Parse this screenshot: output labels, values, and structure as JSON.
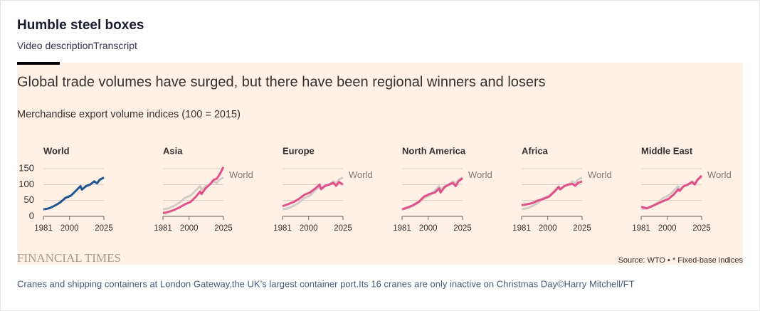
{
  "header": {
    "title": "Humble steel boxes",
    "tabs": [
      "Video description",
      "Transcript"
    ]
  },
  "figure": {
    "title": "Global trade volumes have surged, but there have been regional winners and losers",
    "subtitle": "Merchandise export volume indices (100 = 2015)",
    "logo": "FINANCIAL TIMES",
    "source": "Source: WTO • * Fixed-base indices"
  },
  "caption": "Cranes and shipping containers at London Gateway,the UK’s largest container port.Its 16 cranes are only inactive on Christmas Day©Harry Mitchell/FT",
  "chart_data": [
    {
      "type": "line",
      "title": "World",
      "show_ytick_labels": true,
      "x": [
        1981,
        1985,
        1989,
        1993,
        1997,
        2001,
        2005,
        2008,
        2009,
        2012,
        2015,
        2018,
        2020,
        2022,
        2025
      ],
      "xlim": [
        1981,
        2025
      ],
      "xticks": [
        1981,
        2000,
        2025
      ],
      "ylim": [
        0,
        160
      ],
      "yticks": [
        0,
        50,
        100,
        150
      ],
      "series": [
        {
          "color": "#1f5590",
          "values": [
            22,
            25,
            33,
            43,
            58,
            65,
            82,
            95,
            84,
            95,
            100,
            110,
            104,
            115,
            122
          ]
        }
      ]
    },
    {
      "type": "line",
      "title": "Asia",
      "show_ytick_labels": false,
      "x": [
        1981,
        1985,
        1989,
        1993,
        1997,
        2001,
        2005,
        2008,
        2009,
        2012,
        2015,
        2018,
        2020,
        2022,
        2025
      ],
      "xlim": [
        1981,
        2025
      ],
      "xticks": [
        1981,
        2000,
        2025
      ],
      "ylim": [
        0,
        160
      ],
      "yticks": [
        0,
        50,
        100,
        150
      ],
      "series": [
        {
          "name": "World",
          "color": "#d4ccc6",
          "values": [
            22,
            25,
            33,
            43,
            58,
            65,
            82,
            95,
            84,
            95,
            100,
            110,
            104,
            115,
            122
          ]
        },
        {
          "color": "#e0508a",
          "values": [
            10,
            14,
            20,
            28,
            38,
            45,
            62,
            78,
            70,
            88,
            100,
            115,
            118,
            130,
            155
          ]
        }
      ]
    },
    {
      "type": "line",
      "title": "Europe",
      "show_ytick_labels": false,
      "x": [
        1981,
        1985,
        1989,
        1993,
        1997,
        2001,
        2005,
        2008,
        2009,
        2012,
        2015,
        2018,
        2020,
        2022,
        2025
      ],
      "xlim": [
        1981,
        2025
      ],
      "xticks": [
        1981,
        2000,
        2025
      ],
      "ylim": [
        0,
        160
      ],
      "yticks": [
        0,
        50,
        100,
        150
      ],
      "series": [
        {
          "name": "World",
          "color": "#d4ccc6",
          "values": [
            22,
            25,
            33,
            43,
            58,
            65,
            82,
            95,
            84,
            95,
            100,
            110,
            104,
            115,
            122
          ]
        },
        {
          "color": "#e0508a",
          "values": [
            32,
            38,
            45,
            55,
            68,
            75,
            88,
            100,
            86,
            96,
            100,
            105,
            96,
            108,
            100
          ]
        }
      ]
    },
    {
      "type": "line",
      "title": "North America",
      "show_ytick_labels": false,
      "x": [
        1981,
        1985,
        1989,
        1993,
        1997,
        2001,
        2005,
        2008,
        2009,
        2012,
        2015,
        2018,
        2020,
        2022,
        2025
      ],
      "xlim": [
        1981,
        2025
      ],
      "xticks": [
        1981,
        2000,
        2025
      ],
      "ylim": [
        0,
        160
      ],
      "yticks": [
        0,
        50,
        100,
        150
      ],
      "series": [
        {
          "name": "World",
          "color": "#d4ccc6",
          "values": [
            22,
            25,
            33,
            43,
            58,
            65,
            82,
            95,
            84,
            95,
            100,
            110,
            104,
            115,
            122
          ]
        },
        {
          "color": "#e0508a",
          "values": [
            22,
            28,
            35,
            45,
            62,
            70,
            75,
            88,
            75,
            92,
            100,
            105,
            95,
            110,
            120
          ]
        }
      ]
    },
    {
      "type": "line",
      "title": "Africa",
      "show_ytick_labels": false,
      "x": [
        1981,
        1985,
        1989,
        1993,
        1997,
        2001,
        2005,
        2008,
        2009,
        2012,
        2015,
        2018,
        2020,
        2022,
        2025
      ],
      "xlim": [
        1981,
        2025
      ],
      "xticks": [
        1981,
        2000,
        2025
      ],
      "ylim": [
        0,
        160
      ],
      "yticks": [
        0,
        50,
        100,
        150
      ],
      "series": [
        {
          "name": "World",
          "color": "#d4ccc6",
          "values": [
            22,
            25,
            33,
            43,
            58,
            65,
            82,
            95,
            84,
            95,
            100,
            110,
            104,
            115,
            122
          ]
        },
        {
          "color": "#e0508a",
          "values": [
            35,
            38,
            42,
            50,
            55,
            62,
            78,
            92,
            85,
            95,
            100,
            102,
            96,
            105,
            110
          ]
        }
      ]
    },
    {
      "type": "line",
      "title": "Middle East",
      "show_ytick_labels": false,
      "x": [
        1981,
        1985,
        1989,
        1993,
        1997,
        2001,
        2005,
        2008,
        2009,
        2012,
        2015,
        2018,
        2020,
        2022,
        2025
      ],
      "xlim": [
        1981,
        2025
      ],
      "xticks": [
        1981,
        2000,
        2025
      ],
      "ylim": [
        0,
        160
      ],
      "yticks": [
        0,
        50,
        100,
        150
      ],
      "series": [
        {
          "name": "World",
          "color": "#d4ccc6",
          "values": [
            22,
            25,
            33,
            43,
            58,
            65,
            82,
            95,
            84,
            95,
            100,
            110,
            104,
            115,
            122
          ]
        },
        {
          "color": "#e0508a",
          "values": [
            30,
            25,
            32,
            40,
            48,
            55,
            70,
            85,
            80,
            95,
            100,
            108,
            100,
            115,
            128
          ]
        }
      ]
    }
  ]
}
